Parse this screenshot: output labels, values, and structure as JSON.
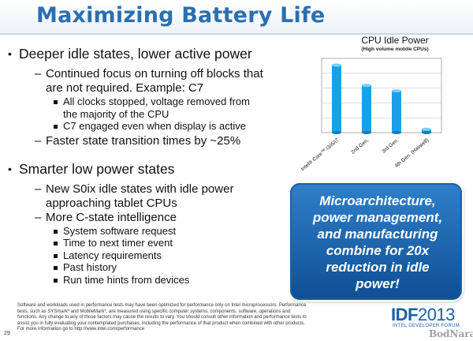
{
  "title": "Maximizing Battery Life",
  "bullets": [
    {
      "text": "Deeper idle states, lower active power",
      "subs": [
        {
          "lines": [
            "Continued focus on turning off blocks that",
            "are not required.  Example: C7"
          ],
          "items": [
            [
              "All clocks stopped, voltage removed from",
              "the majority of the CPU"
            ],
            [
              "C7 engaged even when display is active"
            ]
          ]
        },
        {
          "lines": [
            "Faster state transition times by ~25%"
          ],
          "items": []
        }
      ]
    },
    {
      "text": "Smarter low power states",
      "subs": [
        {
          "lines": [
            "New S0ix idle states with idle power",
            "approaching tablet CPUs"
          ],
          "items": []
        },
        {
          "lines": [
            "More C-state intelligence"
          ],
          "items": [
            [
              "System software request"
            ],
            [
              "Time to next timer event"
            ],
            [
              "Latency requirements"
            ],
            [
              "Past history"
            ],
            [
              "Run time hints from devices"
            ]
          ]
        }
      ]
    }
  ],
  "chart_data": {
    "type": "bar",
    "title": "CPU Idle Power",
    "subtitle": "(High volume mobile CPUs)",
    "categories": [
      "Intel® Core™ i3/i5/i7",
      "2nd Gen.",
      "3rd Gen.",
      "4th Gen. (Haswell)"
    ],
    "values": [
      100,
      70,
      62,
      5
    ],
    "ylim": [
      0,
      110
    ],
    "grid": true,
    "legend": "none",
    "bar_color": "#1aa0e6"
  },
  "callout": {
    "lines": [
      "Microarchitecture,",
      "power management,",
      "and manufacturing",
      "combine for 20x",
      "reduction in idle",
      "power!"
    ]
  },
  "disclaimer": [
    "Software and workloads used in performance tests may have been optimized for performance only on Intel microprocessors. Performance",
    "tests, such as SYSmark* and MobileMark*, are measured using specific computer systems, components, software, operations and",
    "functions. Any change to any of those factors may cause the results to vary. You should consult other information and performance tests to",
    "assist you in fully evaluating your contemplated purchases, including the performance of that product when combined with other products.",
    "For more information go to http://www.intel.com/performance"
  ],
  "page_number": "29",
  "logo": {
    "prefix": "IDF",
    "year": "2013",
    "sub": "INTEL DEVELOPER FORUM"
  },
  "watermark": "BodNara"
}
